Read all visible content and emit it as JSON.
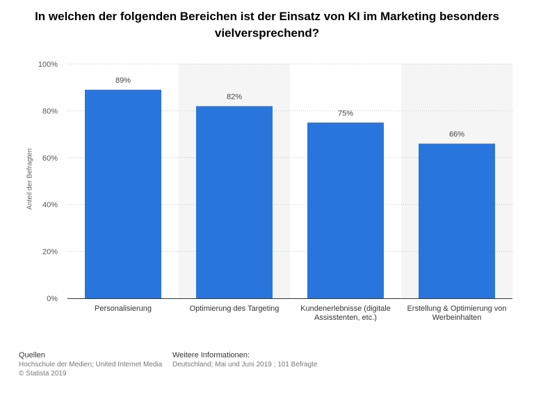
{
  "title": "In welchen der folgenden Bereichen ist der Einsatz von KI im Marketing besonders vielversprechend?",
  "chart_data": {
    "type": "bar",
    "categories": [
      "Personalisierung",
      "Optimierung des Targeting",
      "Kundenerlebnisse (digitale Assisstenten, etc.)",
      "Erstellung & Optimierung von Werbeinhalten"
    ],
    "category_lines": [
      [
        "Personalisierung"
      ],
      [
        "Optimierung des Targeting"
      ],
      [
        "Kundenerlebnisse (digitale",
        "Assisstenten, etc.)"
      ],
      [
        "Erstellung & Optimierung von",
        "Werbeinhalten"
      ]
    ],
    "values": [
      89,
      82,
      75,
      66
    ],
    "value_labels": [
      "89%",
      "82%",
      "75%",
      "66%"
    ],
    "ylabel": "Anteil der Befragten",
    "ylim": [
      0,
      100
    ],
    "yticks": [
      0,
      20,
      40,
      60,
      80,
      100
    ],
    "ytick_labels": [
      "0%",
      "20%",
      "40%",
      "60%",
      "80%",
      "100%"
    ],
    "bar_color": "#2876dd",
    "alt_band_color": "#f5f5f5",
    "grid": true
  },
  "footer": {
    "sources_heading": "Quellen",
    "sources_line1": "Hochschule der Medien; United Internet Media",
    "sources_line2": "© Statista 2019",
    "info_heading": "Weitere Informationen:",
    "info_line1": "Deutschland; Mai und Juni 2019 ; 101 Befragte"
  }
}
